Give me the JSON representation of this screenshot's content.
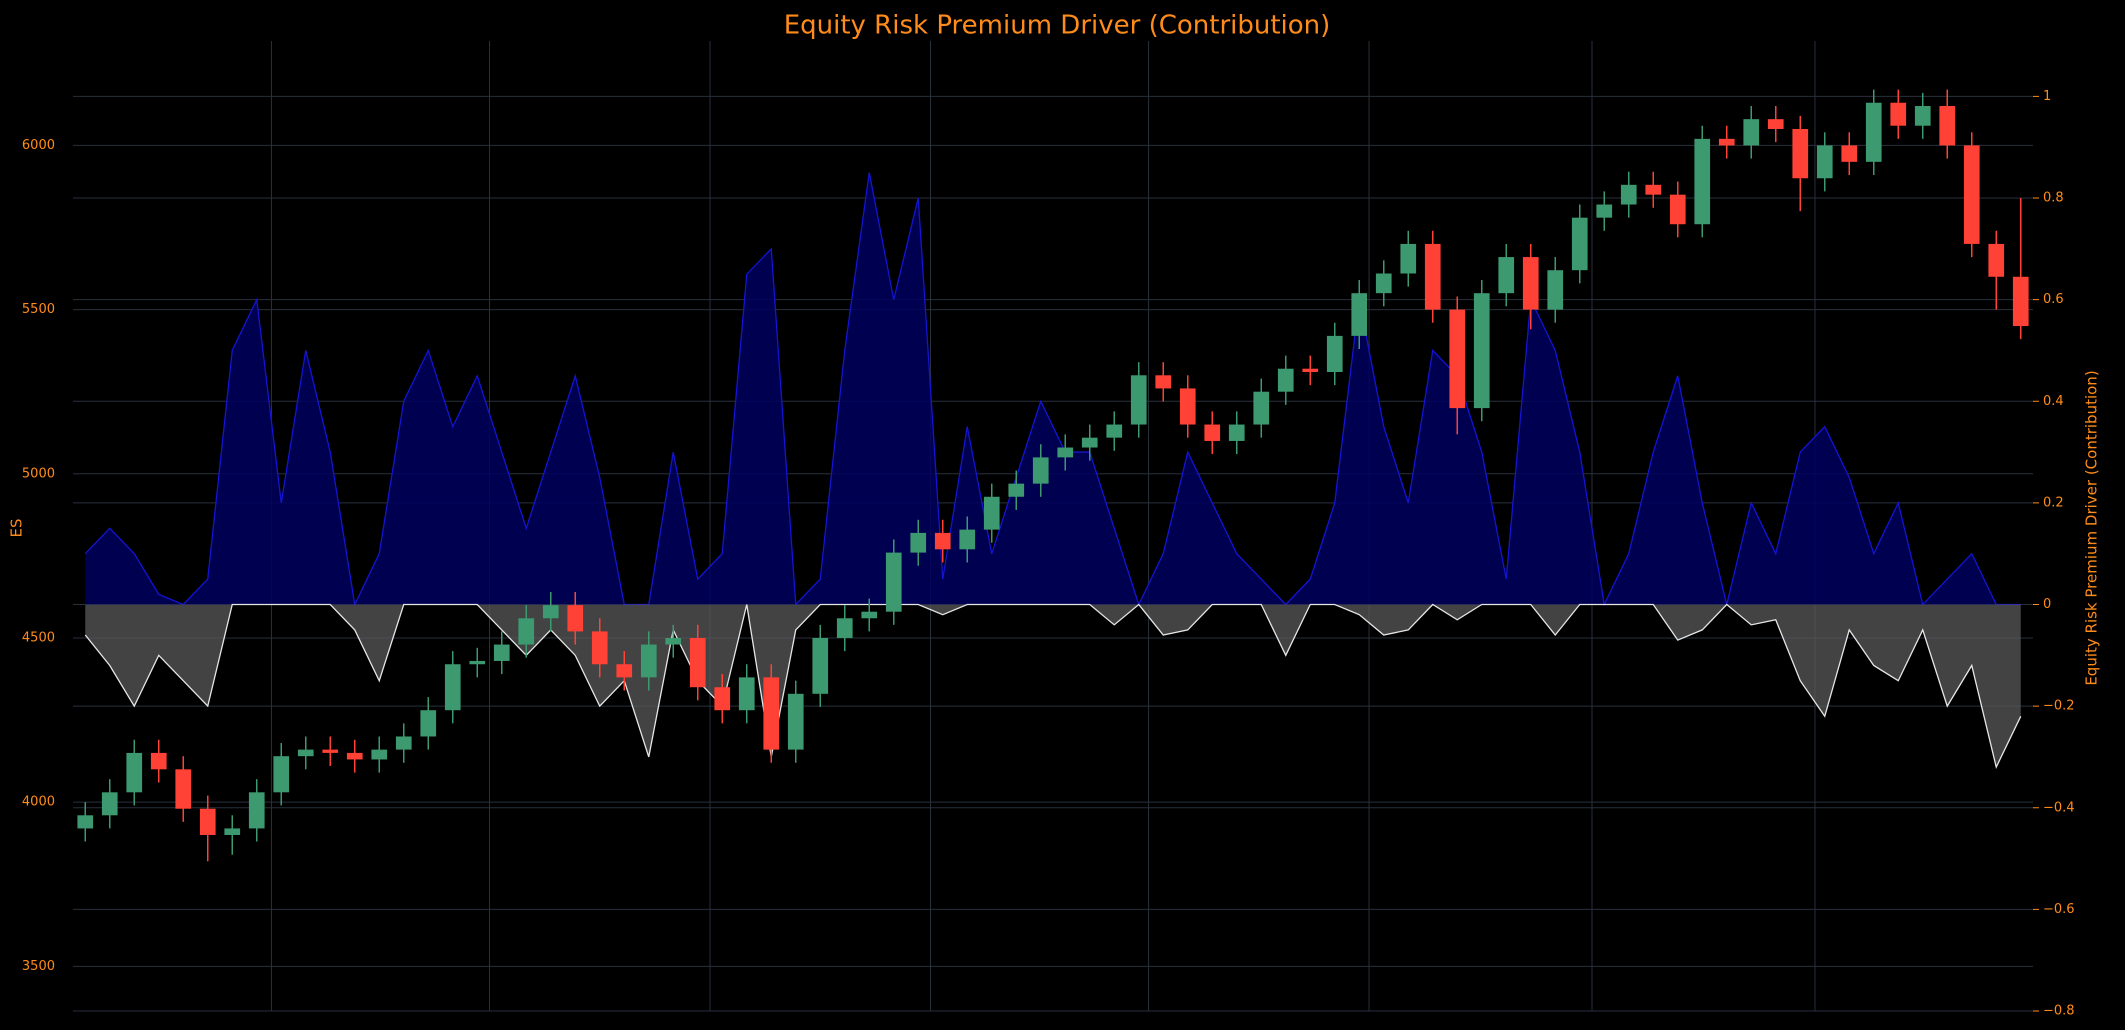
{
  "chart_data": {
    "type": "candlestick",
    "title": "Equity Risk Premium Driver (Contribution)",
    "y_label": "ES",
    "y2_label": "Equity Risk Premium Driver (Contribution)",
    "grid": true,
    "ylim": [
      3364,
      6318
    ],
    "yticks": [
      3500,
      4000,
      4500,
      5000,
      5500,
      6000
    ],
    "y2lim": [
      -0.8,
      1.109
    ],
    "y2ticks": [
      {
        "value": -0.8,
        "label": "−0.8"
      },
      {
        "value": -0.6,
        "label": "−0.6"
      },
      {
        "value": -0.4,
        "label": "−0.4"
      },
      {
        "value": -0.2,
        "label": "−0.2"
      },
      0,
      0.2,
      0.4,
      0.6,
      0.8,
      1
    ],
    "xlim": [
      -0.5,
      79.5
    ],
    "xticks": [
      7.6,
      16.5,
      25.5,
      34.5,
      43.4,
      52.4,
      61.5,
      70.6
    ],
    "candles": {
      "increasing_color": "#3d9970",
      "decreasing_color": "#ff4136",
      "open": [
        3920,
        3960,
        4030,
        4150,
        4100,
        3980,
        3900,
        3920,
        4030,
        4140,
        4160,
        4150,
        4130,
        4160,
        4200,
        4280,
        4420,
        4430,
        4480,
        4560,
        4600,
        4520,
        4420,
        4380,
        4480,
        4500,
        4350,
        4280,
        4380,
        4160,
        4330,
        4500,
        4560,
        4580,
        4760,
        4820,
        4770,
        4830,
        4930,
        4970,
        5050,
        5080,
        5110,
        5150,
        5300,
        5260,
        5150,
        5100,
        5150,
        5250,
        5320,
        5310,
        5420,
        5550,
        5610,
        5700,
        5500,
        5200,
        5550,
        5660,
        5500,
        5620,
        5780,
        5820,
        5880,
        5850,
        5760,
        6020,
        6000,
        6080,
        6050,
        5900,
        6000,
        5950,
        6130,
        6060,
        6120,
        6000,
        5700,
        5600
      ],
      "high": [
        4000,
        4070,
        4190,
        4190,
        4140,
        4020,
        3960,
        4070,
        4180,
        4200,
        4200,
        4190,
        4200,
        4240,
        4320,
        4460,
        4470,
        4520,
        4600,
        4640,
        4640,
        4560,
        4460,
        4520,
        4540,
        4540,
        4390,
        4420,
        4420,
        4370,
        4540,
        4600,
        4620,
        4800,
        4860,
        4860,
        4870,
        4970,
        5010,
        5090,
        5120,
        5150,
        5190,
        5340,
        5340,
        5300,
        5190,
        5190,
        5290,
        5360,
        5360,
        5460,
        5590,
        5650,
        5740,
        5740,
        5540,
        5590,
        5700,
        5700,
        5660,
        5820,
        5860,
        5920,
        5920,
        5890,
        6060,
        6060,
        6120,
        6120,
        6090,
        6040,
        6040,
        6170,
        6170,
        6160,
        6170,
        6040,
        5740,
        5840
      ],
      "low": [
        3880,
        3920,
        3990,
        4060,
        3940,
        3820,
        3840,
        3880,
        3990,
        4100,
        4110,
        4090,
        4090,
        4120,
        4160,
        4240,
        4380,
        4390,
        4440,
        4520,
        4480,
        4380,
        4340,
        4340,
        4440,
        4310,
        4240,
        4240,
        4120,
        4120,
        4290,
        4460,
        4520,
        4540,
        4720,
        4730,
        4730,
        4790,
        4890,
        4930,
        5010,
        5040,
        5070,
        5110,
        5220,
        5110,
        5060,
        5060,
        5110,
        5210,
        5270,
        5270,
        5380,
        5510,
        5570,
        5460,
        5120,
        5160,
        5510,
        5440,
        5460,
        5580,
        5740,
        5780,
        5810,
        5720,
        5720,
        5960,
        5960,
        6010,
        5800,
        5860,
        5910,
        5910,
        6020,
        6020,
        5960,
        5660,
        5500,
        5410
      ],
      "close": [
        3960,
        4030,
        4150,
        4100,
        3980,
        3900,
        3920,
        4030,
        4140,
        4160,
        4150,
        4130,
        4160,
        4200,
        4280,
        4420,
        4430,
        4480,
        4560,
        4600,
        4520,
        4420,
        4380,
        4480,
        4500,
        4350,
        4280,
        4380,
        4160,
        4330,
        4500,
        4560,
        4580,
        4760,
        4820,
        4770,
        4830,
        4930,
        4970,
        5050,
        5080,
        5110,
        5150,
        5300,
        5260,
        5150,
        5100,
        5150,
        5250,
        5320,
        5310,
        5420,
        5550,
        5610,
        5700,
        5500,
        5200,
        5550,
        5660,
        5500,
        5620,
        5780,
        5820,
        5880,
        5850,
        5760,
        6020,
        6000,
        6080,
        6050,
        5900,
        6000,
        5950,
        6130,
        6060,
        6120,
        6000,
        5700,
        5600,
        5450
      ]
    },
    "series": [
      {
        "axis": "y2",
        "color": "#1414d2",
        "fill": "rgba(0,0,95,0.85)",
        "values": [
          0.1,
          0.15,
          0.1,
          0.02,
          0,
          0.05,
          0.5,
          0.6,
          0.2,
          0.5,
          0.3,
          0,
          0.1,
          0.4,
          0.5,
          0.35,
          0.45,
          0.3,
          0.15,
          0.3,
          0.45,
          0.25,
          0,
          0,
          0.3,
          0.05,
          0.1,
          0.65,
          0.7,
          0,
          0.05,
          0.5,
          0.85,
          0.6,
          0.8,
          0.05,
          0.35,
          0.1,
          0.25,
          0.4,
          0.3,
          0.3,
          0.15,
          0,
          0.1,
          0.3,
          0.2,
          0.1,
          0.05,
          0,
          0.05,
          0.2,
          0.6,
          0.35,
          0.2,
          0.5,
          0.45,
          0.3,
          0.05,
          0.6,
          0.5,
          0.3,
          0,
          0.1,
          0.3,
          0.45,
          0.2,
          0,
          0.2,
          0.1,
          0.3,
          0.35,
          0.25,
          0.1,
          0.2,
          0,
          0.05,
          0.1,
          0,
          0
        ]
      },
      {
        "axis": "y2",
        "color": "#e6e6e6",
        "fill": "rgba(90,90,90,0.75)",
        "values": [
          -0.06,
          -0.12,
          -0.2,
          -0.1,
          -0.15,
          -0.2,
          0,
          0,
          0,
          0,
          0,
          -0.05,
          -0.15,
          0,
          0,
          0,
          0,
          -0.05,
          -0.1,
          -0.05,
          -0.1,
          -0.2,
          -0.15,
          -0.3,
          -0.05,
          -0.15,
          -0.2,
          0,
          -0.3,
          -0.05,
          0,
          0,
          0,
          0,
          0,
          -0.02,
          0,
          0,
          0,
          0,
          0,
          0,
          -0.04,
          0,
          -0.06,
          -0.05,
          0,
          0,
          0,
          -0.1,
          0,
          0,
          -0.02,
          -0.06,
          -0.05,
          0,
          -0.03,
          0,
          0,
          0,
          -0.06,
          0,
          0,
          0,
          0,
          -0.07,
          -0.05,
          0,
          -0.04,
          -0.03,
          -0.15,
          -0.22,
          -0.05,
          -0.12,
          -0.15,
          -0.05,
          -0.2,
          -0.12,
          -0.32,
          -0.22
        ]
      }
    ]
  }
}
